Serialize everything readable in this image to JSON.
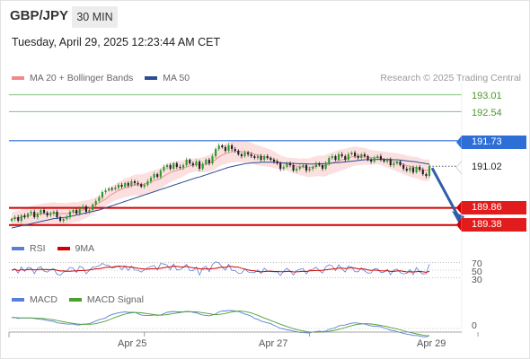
{
  "header": {
    "symbol": "GBP/JPY",
    "timeframe": "30 MIN",
    "datetime": "Tuesday, April 29, 2025 12:23:44 AM CET"
  },
  "legend": {
    "ma20": {
      "label": "MA 20 + Bollinger Bands",
      "color": "#f08a8a"
    },
    "ma50": {
      "label": "MA 50",
      "color": "#2a4e96"
    }
  },
  "credit": "Research © 2025 Trading Central",
  "colors": {
    "up": "#2e9a2e",
    "down": "#222222",
    "band": "#fbd5d5",
    "support": "#d40000",
    "pivot": "#2d6fd6",
    "target": "#7cc47c",
    "arrow": "#2f5ea8"
  },
  "chart_data": [
    {
      "type": "candlestick",
      "ylim": [
        189.2,
        193.35
      ],
      "levels": [
        {
          "value": 193.01,
          "label": "193.01",
          "kind": "resistance-target"
        },
        {
          "value": 192.54,
          "label": "192.54",
          "kind": "resistance-target"
        },
        {
          "value": 191.73,
          "label": "191.73",
          "kind": "pivot"
        },
        {
          "value": 191.02,
          "label": "191.02",
          "kind": "last-price"
        },
        {
          "value": 189.86,
          "label": "189.86",
          "kind": "support"
        },
        {
          "value": 189.38,
          "label": "189.38",
          "kind": "support"
        }
      ],
      "x_ticks": [
        {
          "index": 41,
          "label": "Apr 25"
        },
        {
          "index": 92,
          "label": "Apr 27"
        },
        {
          "index": 144,
          "label": "Apr 29"
        }
      ],
      "close": [
        189.55,
        189.6,
        189.5,
        189.65,
        189.6,
        189.7,
        189.75,
        189.6,
        189.7,
        189.8,
        189.72,
        189.65,
        189.7,
        189.75,
        189.6,
        189.5,
        189.55,
        189.6,
        189.75,
        189.8,
        189.7,
        189.85,
        189.9,
        189.75,
        189.8,
        189.95,
        190.05,
        190.15,
        190.3,
        190.35,
        190.4,
        190.38,
        190.42,
        190.5,
        190.45,
        190.55,
        190.48,
        190.6,
        190.55,
        190.52,
        190.45,
        190.5,
        190.6,
        190.7,
        190.8,
        190.72,
        190.9,
        191.0,
        191.05,
        190.95,
        191.1,
        191.0,
        190.98,
        191.05,
        191.2,
        191.1,
        191.05,
        191.15,
        190.95,
        191.08,
        191.2,
        191.1,
        191.3,
        191.5,
        191.6,
        191.55,
        191.45,
        191.6,
        191.5,
        191.45,
        191.35,
        191.3,
        191.4,
        191.35,
        191.3,
        191.25,
        191.3,
        191.2,
        191.3,
        191.25,
        191.2,
        191.15,
        191.1,
        190.95,
        191.0,
        191.1,
        191.05,
        190.9,
        190.95,
        191.0,
        191.05,
        190.9,
        190.95,
        191.0,
        191.1,
        191.05,
        190.95,
        191.1,
        191.25,
        191.3,
        191.2,
        191.35,
        191.3,
        191.2,
        191.35,
        191.4,
        191.3,
        191.25,
        191.35,
        191.3,
        191.2,
        191.15,
        191.25,
        191.3,
        191.2,
        191.15,
        191.2,
        191.05,
        191.1,
        191.15,
        191.05,
        190.95,
        190.9,
        190.98,
        190.85,
        191.0,
        190.92,
        190.8,
        190.75,
        191.02
      ],
      "ma20": [
        189.55,
        189.57,
        189.57,
        189.6,
        189.62,
        189.64,
        189.66,
        189.67,
        189.68,
        189.69,
        189.7,
        189.7,
        189.71,
        189.72,
        189.7,
        189.7,
        189.7,
        189.7,
        189.72,
        189.74,
        189.74,
        189.76,
        189.8,
        189.82,
        189.85,
        189.9,
        189.95,
        190.0,
        190.05,
        190.1,
        190.18,
        190.24,
        190.29,
        190.34,
        190.38,
        190.42,
        190.44,
        190.47,
        190.5,
        190.5,
        190.5,
        190.52,
        190.55,
        190.58,
        190.62,
        190.64,
        190.68,
        190.74,
        190.8,
        190.84,
        190.88,
        190.9,
        190.93,
        190.96,
        191.0,
        191.03,
        191.04,
        191.06,
        191.05,
        191.06,
        191.08,
        191.1,
        191.15,
        191.2,
        191.28,
        191.33,
        191.36,
        191.4,
        191.42,
        191.43,
        191.44,
        191.43,
        191.42,
        191.41,
        191.39,
        191.35,
        191.33,
        191.3,
        191.28,
        191.26,
        191.24,
        191.2,
        191.16,
        191.12,
        191.1,
        191.08,
        191.06,
        191.04,
        191.02,
        191.0,
        191.0,
        190.98,
        190.98,
        191.0,
        191.02,
        191.03,
        191.02,
        191.04,
        191.08,
        191.11,
        191.14,
        191.18,
        191.2,
        191.22,
        191.25,
        191.28,
        191.3,
        191.3,
        191.3,
        191.3,
        191.28,
        191.26,
        191.26,
        191.26,
        191.25,
        191.22,
        191.2,
        191.17,
        191.15,
        191.13,
        191.1,
        191.07,
        191.04,
        191.02,
        190.99,
        190.98,
        190.95,
        190.92,
        190.9,
        190.92
      ],
      "ma50": [
        189.3,
        189.32,
        189.34,
        189.36,
        189.38,
        189.4,
        189.42,
        189.44,
        189.46,
        189.48,
        189.5,
        189.52,
        189.54,
        189.56,
        189.57,
        189.58,
        189.59,
        189.6,
        189.62,
        189.64,
        189.66,
        189.68,
        189.7,
        189.72,
        189.74,
        189.76,
        189.78,
        189.8,
        189.83,
        189.86,
        189.89,
        189.92,
        189.95,
        189.98,
        190.01,
        190.04,
        190.07,
        190.1,
        190.13,
        190.16,
        190.19,
        190.22,
        190.25,
        190.28,
        190.31,
        190.34,
        190.37,
        190.4,
        190.43,
        190.46,
        190.49,
        190.52,
        190.55,
        190.58,
        190.61,
        190.64,
        190.67,
        190.7,
        190.72,
        190.75,
        190.78,
        190.81,
        190.84,
        190.87,
        190.9,
        190.93,
        190.96,
        190.99,
        191.01,
        191.03,
        191.05,
        191.07,
        191.09,
        191.1,
        191.11,
        191.12,
        191.12,
        191.13,
        191.13,
        191.13,
        191.13,
        191.13,
        191.12,
        191.12,
        191.11,
        191.11,
        191.1,
        191.1,
        191.09,
        191.09,
        191.09,
        191.08,
        191.08,
        191.08,
        191.09,
        191.09,
        191.09,
        191.1,
        191.1,
        191.11,
        191.12,
        191.12,
        191.13,
        191.14,
        191.15,
        191.16,
        191.17,
        191.18,
        191.19,
        191.2,
        191.2,
        191.2,
        191.21,
        191.21,
        191.21,
        191.21,
        191.21,
        191.21,
        191.2,
        191.2,
        191.19,
        191.18,
        191.17,
        191.16,
        191.15,
        191.14,
        191.12,
        191.11,
        191.09,
        191.08
      ]
    },
    {
      "type": "line",
      "title": "RSI",
      "series": [
        {
          "name": "RSI",
          "color": "#5a7fd8"
        },
        {
          "name": "9MA",
          "color": "#d40000"
        }
      ],
      "ylim": [
        20,
        80
      ],
      "y_ticks": [
        {
          "value": 70,
          "label": "70"
        },
        {
          "value": 50,
          "label": "50"
        },
        {
          "value": 30,
          "label": "30"
        }
      ]
    },
    {
      "type": "line",
      "title": "MACD",
      "series": [
        {
          "name": "MACD",
          "color": "#5a7fd8"
        },
        {
          "name": "MACD Signal",
          "color": "#4aa02c"
        }
      ],
      "y_ticks": [
        {
          "value": 0,
          "label": "0"
        }
      ]
    }
  ]
}
